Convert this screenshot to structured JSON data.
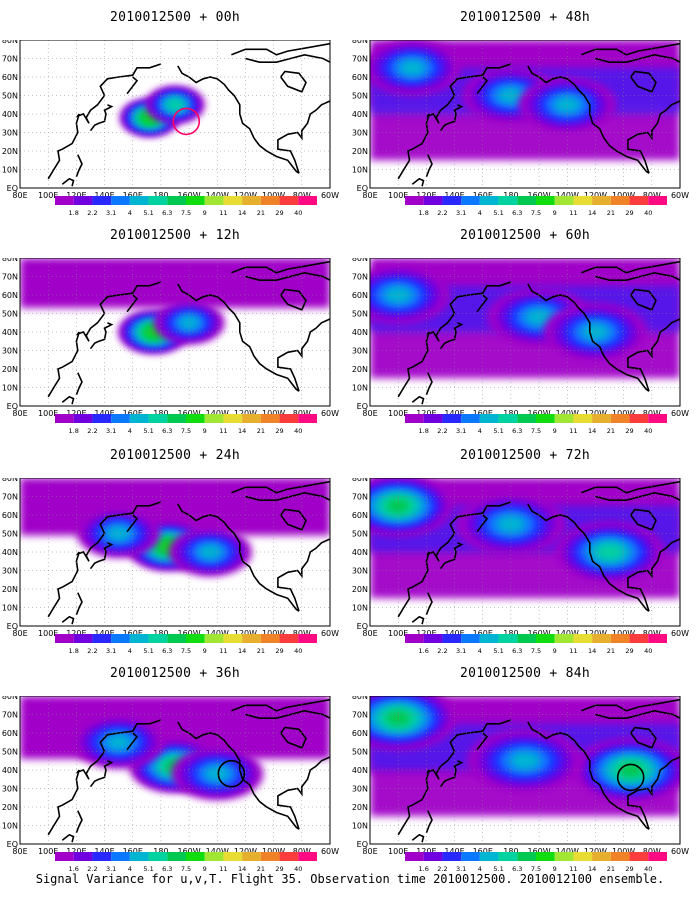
{
  "footer": "Signal Variance for u,v,T. Flight 35. Observation time 2010012500. 2010012100 ensemble.",
  "colorbar": {
    "labels": [
      "1.8",
      "2.2",
      "3.1",
      "4",
      "5.1",
      "6.3",
      "7.5",
      "9",
      "11",
      "14",
      "21",
      "29",
      "40"
    ],
    "alt_labels": [
      "1.6",
      "2.2",
      "3.1",
      "4",
      "5.1",
      "6.3",
      "7.5",
      "9",
      "11",
      "14",
      "21",
      "29",
      "40"
    ],
    "colors": [
      "#a000c8",
      "#7000e0",
      "#2828ff",
      "#0a78ff",
      "#00b4d2",
      "#00d2a0",
      "#00c850",
      "#10dc10",
      "#a0e632",
      "#e6dc32",
      "#e6af2d",
      "#f08228",
      "#fa3c3c",
      "#ff0a82"
    ]
  },
  "lon_ticks": [
    "80E",
    "100E",
    "120E",
    "140E",
    "160E",
    "180",
    "160W",
    "140W",
    "120W",
    "100W",
    "80W",
    "60W"
  ],
  "lat_ticks": [
    "EQ",
    "10N",
    "20N",
    "30N",
    "40N",
    "50N",
    "60N",
    "70N",
    "80N"
  ],
  "chart_data": [
    {
      "type": "heatmap",
      "title": "2010012500 + 00h",
      "blobs": [
        {
          "lon": 172,
          "lat": 38,
          "intensity": 0.9
        },
        {
          "lon": 190,
          "lat": 45,
          "intensity": 0.7
        }
      ],
      "marker": {
        "lon": 198,
        "lat": 36,
        "color": "#ff0064"
      }
    },
    {
      "type": "heatmap",
      "title": "2010012500 + 12h",
      "blobs": [
        {
          "lon": 175,
          "lat": 40,
          "intensity": 0.85
        },
        {
          "lon": 200,
          "lat": 45,
          "intensity": 0.6
        }
      ]
    },
    {
      "type": "heatmap",
      "title": "2010012500 + 24h",
      "blobs": [
        {
          "lon": 185,
          "lat": 43,
          "intensity": 0.85
        },
        {
          "lon": 215,
          "lat": 40,
          "intensity": 0.6
        },
        {
          "lon": 150,
          "lat": 50,
          "intensity": 0.5
        }
      ]
    },
    {
      "type": "heatmap",
      "title": "2010012500 + 36h",
      "blobs": [
        {
          "lon": 190,
          "lat": 42,
          "intensity": 0.8
        },
        {
          "lon": 220,
          "lat": 38,
          "intensity": 0.6
        },
        {
          "lon": 150,
          "lat": 55,
          "intensity": 0.5
        }
      ],
      "marker": {
        "lon": 230,
        "lat": 38,
        "color": "#000000"
      }
    },
    {
      "type": "heatmap",
      "title": "2010012500 + 48h",
      "blobs": [
        {
          "lon": 180,
          "lat": 50,
          "intensity": 0.6
        },
        {
          "lon": 220,
          "lat": 45,
          "intensity": 0.6
        },
        {
          "lon": 110,
          "lat": 65,
          "intensity": 0.5
        }
      ]
    },
    {
      "type": "heatmap",
      "title": "2010012500 + 60h",
      "blobs": [
        {
          "lon": 200,
          "lat": 48,
          "intensity": 0.6
        },
        {
          "lon": 240,
          "lat": 40,
          "intensity": 0.6
        },
        {
          "lon": 100,
          "lat": 60,
          "intensity": 0.5
        }
      ]
    },
    {
      "type": "heatmap",
      "title": "2010012500 + 72h",
      "blobs": [
        {
          "lon": 100,
          "lat": 65,
          "intensity": 0.75
        },
        {
          "lon": 250,
          "lat": 40,
          "intensity": 0.7
        },
        {
          "lon": 180,
          "lat": 55,
          "intensity": 0.5
        }
      ]
    },
    {
      "type": "heatmap",
      "title": "2010012500 + 84h",
      "blobs": [
        {
          "lon": 100,
          "lat": 68,
          "intensity": 0.75
        },
        {
          "lon": 265,
          "lat": 40,
          "intensity": 0.8
        },
        {
          "lon": 190,
          "lat": 45,
          "intensity": 0.55
        }
      ],
      "marker": {
        "lon": 265,
        "lat": 36,
        "color": "#000000"
      }
    }
  ]
}
